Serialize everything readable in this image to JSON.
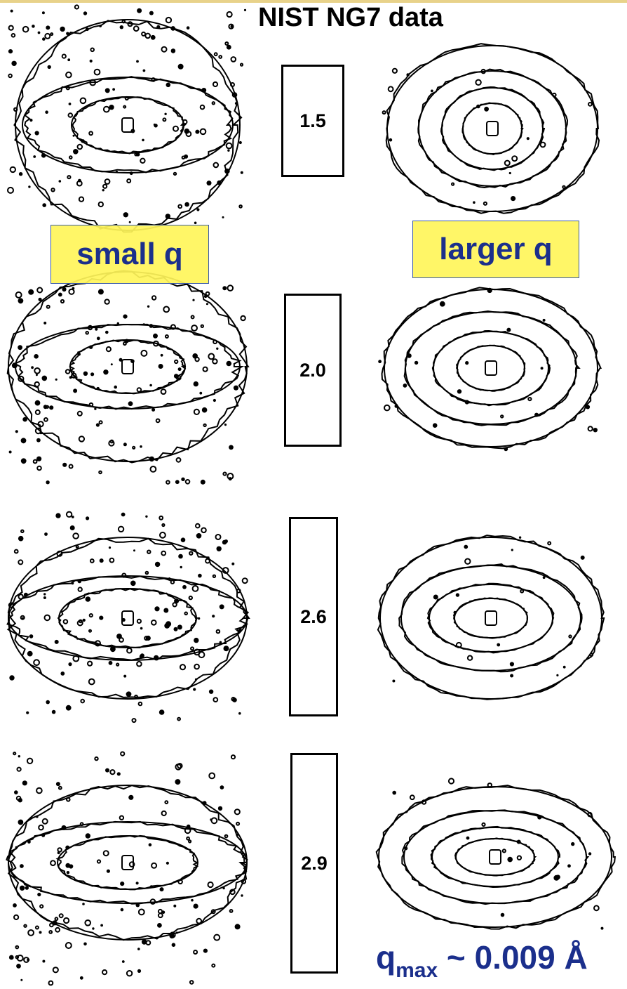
{
  "title": "NIST NG7 data",
  "labels": {
    "small": "small q",
    "large": "larger q"
  },
  "rows": [
    {
      "value": "1.5"
    },
    {
      "value": "2.0"
    },
    {
      "value": "2.6"
    },
    {
      "value": "2.9"
    }
  ],
  "qmax": {
    "symbol": "q",
    "sub": "max",
    "rest": " ~ 0.009 Å"
  },
  "colors": {
    "accent_text": "#1b2f8c",
    "highlight": "#fff55a",
    "lines": "#000000"
  }
}
